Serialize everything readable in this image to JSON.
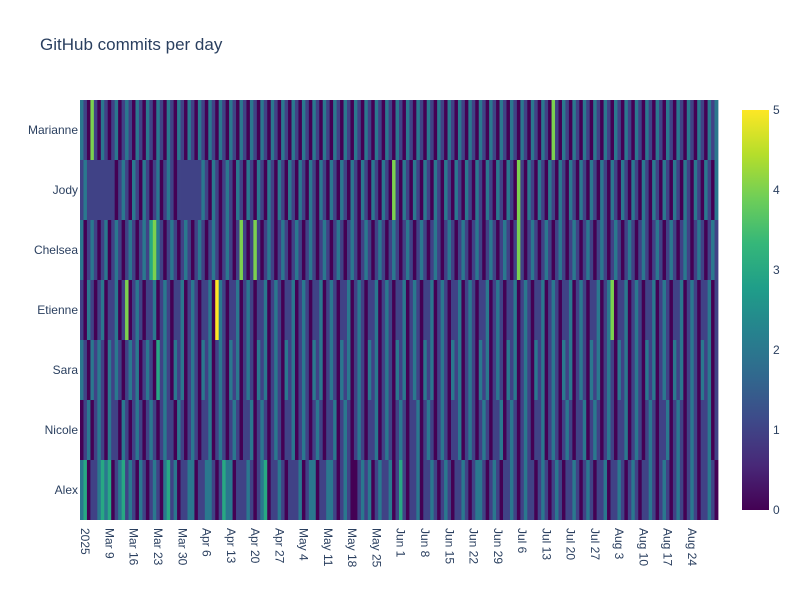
{
  "chart_data": {
    "type": "heatmap",
    "title": "GitHub commits per day",
    "xlabel": "",
    "ylabel": "",
    "colorscale": "Viridis",
    "colorscale_stops": [
      "#440154",
      "#482878",
      "#3e4989",
      "#31688e",
      "#26828e",
      "#1f9e89",
      "#35b779",
      "#6ece58",
      "#b5de2b",
      "#fde725"
    ],
    "zlim": [
      0,
      5
    ],
    "colorbar_ticks": [
      "0",
      "1",
      "2",
      "3",
      "4",
      "5"
    ],
    "x_start": "2025-03-01",
    "x_end": "2025-08-31",
    "x_tick_labels": [
      "2025",
      "Mar 9",
      "Mar 16",
      "Mar 23",
      "Mar 30",
      "Apr 6",
      "Apr 13",
      "Apr 20",
      "Apr 27",
      "May 4",
      "May 11",
      "May 18",
      "May 25",
      "Jun 1",
      "Jun 8",
      "Jun 15",
      "Jun 22",
      "Jun 29",
      "Jul 6",
      "Jul 13",
      "Jul 20",
      "Jul 27",
      "Aug 3",
      "Aug 10",
      "Aug 17",
      "Aug 24"
    ],
    "y_categories": [
      "Alex",
      "Nicole",
      "Sara",
      "Etienne",
      "Chelsea",
      "Jody",
      "Marianne"
    ],
    "z": [
      [
        2,
        3,
        0,
        1,
        1,
        2,
        3,
        2,
        3,
        0,
        1,
        2,
        3,
        1,
        2,
        1,
        0,
        2,
        1,
        0,
        1,
        2,
        1,
        0,
        2,
        3,
        1,
        2,
        0,
        1,
        1,
        2,
        2,
        0,
        1,
        1,
        2,
        2,
        1,
        0,
        1,
        3,
        2,
        2,
        0,
        1,
        1,
        1,
        2,
        1,
        0,
        1,
        2,
        3,
        0,
        1,
        1,
        2,
        1,
        0,
        1,
        1,
        1,
        2,
        0,
        1,
        2,
        2,
        0,
        1,
        1,
        2,
        2,
        1,
        0,
        1,
        2,
        1,
        0,
        0,
        1,
        2,
        1,
        2,
        0,
        1,
        2,
        1,
        1,
        2,
        0,
        1,
        3,
        1,
        0,
        1,
        1,
        2,
        0,
        1,
        1,
        2,
        1,
        0,
        1,
        2,
        1,
        0,
        1,
        1,
        2,
        1,
        0,
        1,
        2,
        2,
        1,
        0,
        1,
        2,
        1,
        0,
        1,
        1,
        2,
        1,
        0,
        1,
        2,
        1,
        1,
        0,
        1,
        2,
        1,
        0,
        1,
        2,
        1,
        0,
        1,
        1,
        2,
        1,
        0,
        1,
        2,
        1,
        0,
        1,
        1,
        2,
        0,
        1,
        1,
        2,
        1,
        0,
        1,
        2,
        1,
        0,
        1,
        1,
        2,
        1,
        0,
        1,
        2,
        1,
        0,
        1,
        2,
        1,
        0,
        1,
        2,
        1,
        0,
        1,
        1,
        2,
        1,
        0
      ],
      [
        0,
        1,
        2,
        0,
        1,
        2,
        1,
        0,
        2,
        1,
        1,
        0,
        2,
        1,
        0,
        1,
        2,
        1,
        0,
        1,
        2,
        1,
        0,
        1,
        2,
        1,
        1,
        0,
        2,
        1,
        0,
        1,
        2,
        1,
        0,
        1,
        1,
        2,
        0,
        1,
        2,
        1,
        0,
        1,
        2,
        1,
        0,
        1,
        1,
        2,
        0,
        1,
        2,
        1,
        0,
        1,
        2,
        1,
        0,
        1,
        1,
        2,
        0,
        1,
        2,
        1,
        0,
        1,
        2,
        1,
        0,
        1,
        1,
        2,
        0,
        1,
        2,
        1,
        0,
        1,
        2,
        1,
        0,
        1,
        1,
        2,
        0,
        1,
        2,
        1,
        0,
        1,
        2,
        1,
        0,
        1,
        1,
        2,
        0,
        1,
        2,
        1,
        0,
        1,
        2,
        1,
        0,
        1,
        1,
        2,
        0,
        1,
        2,
        1,
        0,
        1,
        2,
        1,
        0,
        1,
        1,
        2,
        0,
        1,
        2,
        1,
        0,
        1,
        2,
        1,
        0,
        1,
        1,
        2,
        0,
        1,
        2,
        1,
        0,
        1,
        2,
        1,
        0,
        1,
        1,
        2,
        0,
        1,
        2,
        1,
        0,
        1,
        2,
        1,
        0,
        1,
        1,
        2,
        0,
        1,
        2,
        1,
        0,
        1,
        2,
        1,
        0,
        1,
        1,
        2,
        0,
        1,
        2,
        1,
        0,
        1,
        2,
        1,
        0,
        1,
        1,
        2,
        0,
        1
      ],
      [
        2,
        1,
        0,
        2,
        1,
        2,
        1,
        0,
        2,
        1,
        2,
        1,
        0,
        1,
        2,
        1,
        2,
        0,
        1,
        2,
        1,
        0,
        3,
        1,
        2,
        1,
        0,
        2,
        1,
        2,
        0,
        1,
        2,
        1,
        0,
        2,
        1,
        2,
        0,
        1,
        2,
        1,
        0,
        2,
        1,
        2,
        0,
        1,
        2,
        1,
        0,
        2,
        1,
        2,
        0,
        1,
        2,
        1,
        0,
        2,
        1,
        2,
        0,
        1,
        2,
        1,
        0,
        2,
        1,
        2,
        0,
        1,
        2,
        1,
        0,
        2,
        1,
        2,
        0,
        1,
        2,
        1,
        0,
        2,
        1,
        2,
        0,
        1,
        2,
        1,
        0,
        2,
        1,
        2,
        0,
        1,
        2,
        1,
        0,
        2,
        1,
        2,
        0,
        1,
        2,
        1,
        0,
        2,
        1,
        2,
        0,
        1,
        2,
        1,
        0,
        2,
        1,
        2,
        0,
        1,
        2,
        1,
        0,
        2,
        1,
        2,
        0,
        1,
        2,
        1,
        0,
        2,
        1,
        2,
        0,
        1,
        2,
        1,
        0,
        2,
        1,
        2,
        0,
        1,
        2,
        1,
        0,
        2,
        1,
        2,
        0,
        1,
        2,
        1,
        0,
        2,
        1,
        2,
        0,
        1,
        2,
        1,
        0,
        2,
        1,
        2,
        0,
        1,
        2,
        1,
        0,
        2,
        1,
        2,
        0,
        1,
        2,
        1,
        0,
        2,
        1,
        2,
        0,
        1
      ],
      [
        1,
        0,
        2,
        1,
        0,
        1,
        2,
        0,
        1,
        1,
        2,
        0,
        1,
        4,
        0,
        1,
        2,
        1,
        0,
        1,
        1,
        2,
        0,
        1,
        2,
        1,
        0,
        1,
        1,
        2,
        0,
        1,
        2,
        1,
        0,
        1,
        1,
        2,
        0,
        5,
        2,
        1,
        0,
        1,
        1,
        2,
        0,
        1,
        2,
        1,
        0,
        1,
        1,
        2,
        0,
        1,
        2,
        1,
        0,
        1,
        1,
        2,
        0,
        1,
        2,
        1,
        0,
        1,
        1,
        2,
        0,
        1,
        2,
        1,
        0,
        1,
        1,
        2,
        0,
        1,
        2,
        1,
        0,
        1,
        1,
        2,
        0,
        1,
        2,
        1,
        0,
        1,
        1,
        2,
        0,
        1,
        2,
        1,
        0,
        1,
        1,
        2,
        0,
        1,
        2,
        1,
        0,
        1,
        1,
        2,
        0,
        1,
        2,
        1,
        0,
        1,
        1,
        2,
        0,
        1,
        2,
        1,
        0,
        1,
        1,
        2,
        0,
        1,
        2,
        1,
        0,
        1,
        1,
        2,
        0,
        1,
        2,
        1,
        0,
        1,
        1,
        2,
        0,
        1,
        2,
        1,
        0,
        1,
        1,
        2,
        0,
        1,
        2,
        4,
        0,
        1,
        1,
        2,
        0,
        1,
        2,
        1,
        0,
        1,
        1,
        2,
        0,
        1,
        2,
        1,
        0,
        1,
        1,
        2,
        0,
        1,
        2,
        1,
        0,
        1,
        1,
        2,
        0,
        1
      ],
      [
        2,
        0,
        1,
        2,
        1,
        0,
        1,
        2,
        0,
        1,
        2,
        1,
        0,
        1,
        2,
        1,
        0,
        1,
        2,
        1,
        3,
        4,
        2,
        1,
        0,
        1,
        2,
        1,
        0,
        1,
        2,
        1,
        0,
        1,
        2,
        1,
        0,
        1,
        2,
        1,
        0,
        1,
        2,
        1,
        0,
        1,
        4,
        1,
        0,
        1,
        4,
        1,
        0,
        1,
        2,
        1,
        0,
        1,
        2,
        1,
        0,
        1,
        2,
        1,
        0,
        1,
        2,
        1,
        0,
        1,
        2,
        1,
        0,
        1,
        2,
        1,
        0,
        1,
        2,
        1,
        0,
        1,
        2,
        1,
        0,
        1,
        2,
        1,
        0,
        1,
        2,
        1,
        0,
        1,
        2,
        1,
        0,
        1,
        2,
        1,
        0,
        1,
        2,
        1,
        0,
        1,
        2,
        1,
        0,
        1,
        2,
        1,
        0,
        1,
        2,
        1,
        0,
        1,
        2,
        1,
        0,
        1,
        2,
        1,
        0,
        1,
        4,
        1,
        0,
        1,
        2,
        1,
        0,
        1,
        2,
        1,
        0,
        1,
        2,
        1,
        0,
        1,
        2,
        1,
        0,
        1,
        2,
        1,
        0,
        1,
        2,
        1,
        0,
        1,
        2,
        1,
        0,
        1,
        2,
        1,
        0,
        1,
        2,
        1,
        0,
        1,
        2,
        1,
        0,
        1,
        2,
        1,
        0,
        1,
        2,
        1,
        0,
        1,
        2,
        1,
        0,
        1,
        2,
        1,
        0,
        1
      ],
      [
        1,
        2,
        1,
        1,
        1,
        1,
        1,
        1,
        1,
        1,
        0,
        1,
        2,
        1,
        0,
        2,
        1,
        0,
        2,
        1,
        0,
        1,
        2,
        0,
        1,
        2,
        1,
        0,
        1,
        1,
        1,
        1,
        1,
        1,
        1,
        2,
        1,
        0,
        2,
        1,
        0,
        1,
        2,
        1,
        0,
        2,
        1,
        0,
        2,
        1,
        0,
        2,
        1,
        0,
        2,
        1,
        0,
        2,
        1,
        0,
        2,
        1,
        0,
        2,
        1,
        0,
        2,
        1,
        0,
        2,
        1,
        0,
        2,
        1,
        0,
        2,
        1,
        0,
        2,
        1,
        0,
        2,
        1,
        0,
        2,
        1,
        0,
        2,
        1,
        0,
        4,
        1,
        0,
        2,
        1,
        0,
        2,
        1,
        0,
        2,
        1,
        0,
        2,
        1,
        0,
        2,
        1,
        0,
        2,
        1,
        0,
        2,
        1,
        0,
        2,
        1,
        0,
        2,
        1,
        0,
        2,
        1,
        0,
        2,
        1,
        0,
        4,
        1,
        0,
        2,
        1,
        0,
        2,
        1,
        0,
        2,
        1,
        0,
        2,
        1,
        0,
        2,
        1,
        0,
        2,
        1,
        0,
        2,
        1,
        0,
        2,
        1,
        0,
        2,
        1,
        0,
        2,
        1,
        0,
        2,
        1,
        0,
        2,
        1,
        0,
        2,
        1,
        0,
        2,
        1,
        0,
        2,
        1,
        0,
        2,
        1,
        0,
        2,
        1,
        0,
        2,
        1,
        0,
        2,
        1
      ],
      [
        2,
        1,
        0,
        4,
        1,
        0,
        2,
        1,
        0,
        1,
        2,
        0,
        1,
        2,
        1,
        0,
        2,
        1,
        0,
        2,
        1,
        0,
        2,
        1,
        0,
        2,
        1,
        0,
        2,
        1,
        0,
        2,
        1,
        0,
        2,
        1,
        0,
        2,
        1,
        0,
        2,
        1,
        0,
        2,
        1,
        0,
        2,
        1,
        0,
        2,
        1,
        0,
        2,
        1,
        0,
        2,
        1,
        0,
        2,
        1,
        0,
        2,
        1,
        0,
        2,
        1,
        0,
        2,
        1,
        0,
        2,
        1,
        0,
        2,
        1,
        0,
        2,
        1,
        0,
        2,
        1,
        0,
        2,
        1,
        0,
        2,
        1,
        0,
        2,
        1,
        0,
        2,
        1,
        0,
        2,
        1,
        0,
        2,
        1,
        0,
        2,
        1,
        0,
        2,
        1,
        0,
        2,
        1,
        0,
        2,
        1,
        0,
        2,
        1,
        0,
        2,
        1,
        0,
        2,
        1,
        0,
        2,
        1,
        0,
        2,
        1,
        0,
        2,
        1,
        0,
        2,
        1,
        0,
        2,
        1,
        0,
        4,
        1,
        0,
        2,
        1,
        0,
        2,
        1,
        0,
        2,
        1,
        0,
        2,
        1,
        0,
        2,
        1,
        0,
        2,
        1,
        0,
        2,
        1,
        0,
        2,
        1,
        0,
        2,
        1,
        0,
        2,
        1,
        0,
        2,
        1,
        0,
        2,
        1,
        0,
        2,
        1,
        0,
        2,
        1,
        0,
        2,
        1
      ]
    ]
  }
}
